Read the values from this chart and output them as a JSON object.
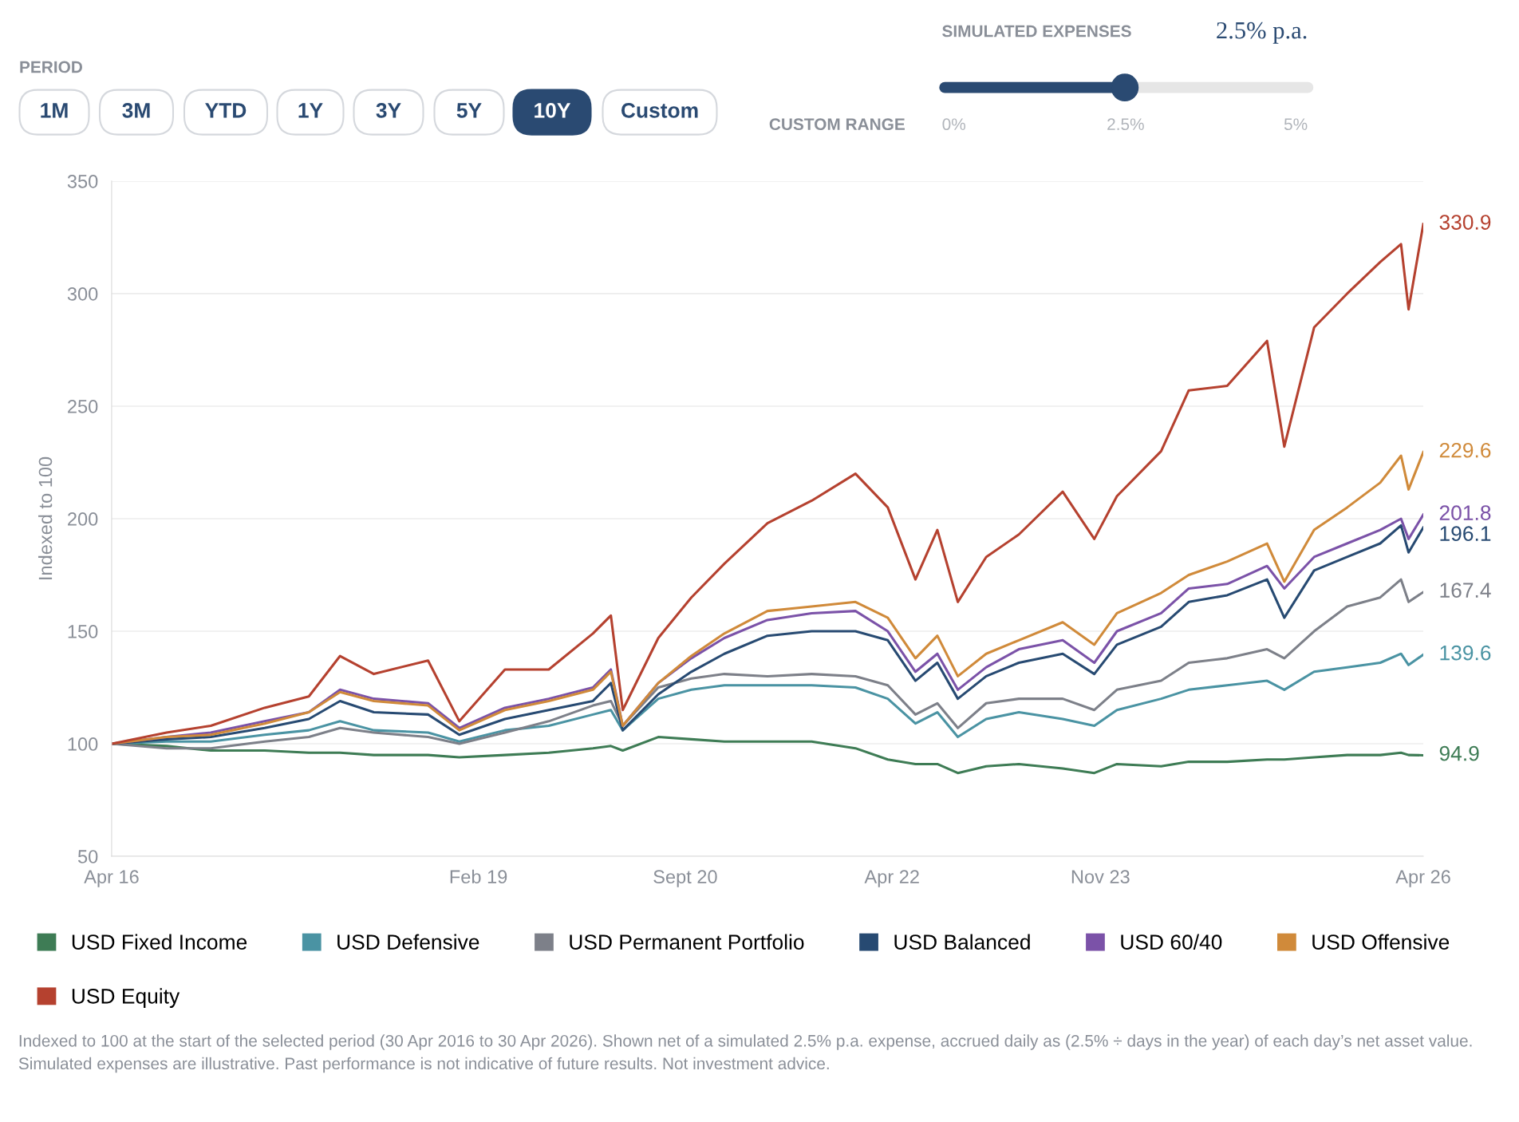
{
  "chart_data": {
    "type": "line",
    "ylabel": "Indexed to 100",
    "x": [
      "2016-04-30",
      "2016-09-30",
      "2017-01-31",
      "2017-06-30",
      "2017-10-31",
      "2018-01-26",
      "2018-04-30",
      "2018-09-28",
      "2018-12-24",
      "2019-04-30",
      "2019-08-30",
      "2019-12-31",
      "2020-02-19",
      "2020-03-23",
      "2020-06-30",
      "2020-09-30",
      "2020-12-31",
      "2021-04-30",
      "2021-08-31",
      "2021-12-31",
      "2022-03-31",
      "2022-06-16",
      "2022-08-16",
      "2022-10-12",
      "2022-12-30",
      "2023-03-31",
      "2023-07-31",
      "2023-10-27",
      "2023-12-29",
      "2024-04-30",
      "2024-07-16",
      "2024-10-31",
      "2025-02-19",
      "2025-04-08",
      "2025-06-30",
      "2025-09-30",
      "2025-12-31",
      "2026-02-27",
      "2026-03-20",
      "2026-04-30"
    ],
    "series": [
      {
        "name": "USD Fixed Income",
        "color": "#3e7c55",
        "values": [
          100,
          99,
          97,
          97,
          96,
          96,
          95,
          95,
          94,
          95,
          96,
          98,
          99,
          97,
          103,
          102,
          101,
          101,
          101,
          98,
          93,
          91,
          91,
          87,
          90,
          91,
          89,
          87,
          91,
          90,
          92,
          92,
          93,
          93,
          94,
          95,
          95,
          96,
          95,
          94.9
        ],
        "value_labels": [
          null,
          null,
          null,
          null,
          null,
          null,
          null,
          null,
          null,
          null,
          null,
          null,
          null,
          null,
          null,
          null,
          null,
          null,
          null,
          null,
          null,
          null,
          null,
          null,
          null,
          null,
          null,
          null,
          null,
          null,
          null,
          null,
          null,
          null,
          null,
          null,
          null,
          null,
          null,
          "94.9"
        ]
      },
      {
        "name": "USD Defensive",
        "color": "#4a93a3",
        "values": [
          100,
          101,
          101,
          104,
          106,
          110,
          106,
          105,
          101,
          106,
          108,
          113,
          115,
          106,
          120,
          124,
          126,
          126,
          126,
          125,
          120,
          109,
          114,
          103,
          111,
          114,
          111,
          108,
          115,
          120,
          124,
          126,
          128,
          124,
          132,
          134,
          136,
          140,
          135,
          139.6
        ],
        "value_labels": [
          null,
          null,
          null,
          null,
          null,
          null,
          null,
          null,
          null,
          null,
          null,
          null,
          null,
          null,
          null,
          null,
          null,
          null,
          null,
          null,
          null,
          null,
          null,
          null,
          null,
          null,
          null,
          null,
          null,
          null,
          null,
          null,
          null,
          null,
          null,
          null,
          null,
          null,
          null,
          "139.6"
        ]
      },
      {
        "name": "USD Permanent Portfolio",
        "color": "#7d8089",
        "values": [
          100,
          98,
          98,
          101,
          103,
          107,
          105,
          103,
          100,
          105,
          110,
          117,
          119,
          108,
          125,
          129,
          131,
          130,
          131,
          130,
          126,
          113,
          118,
          107,
          118,
          120,
          120,
          115,
          124,
          128,
          136,
          138,
          142,
          138,
          150,
          161,
          165,
          173,
          163,
          167.4
        ],
        "value_labels": [
          null,
          null,
          null,
          null,
          null,
          null,
          null,
          null,
          null,
          null,
          null,
          null,
          null,
          null,
          null,
          null,
          null,
          null,
          null,
          null,
          null,
          null,
          null,
          null,
          null,
          null,
          null,
          null,
          null,
          null,
          null,
          null,
          null,
          null,
          null,
          null,
          null,
          null,
          null,
          "167.4"
        ]
      },
      {
        "name": "USD Balanced",
        "color": "#274a72",
        "values": [
          100,
          102,
          103,
          107,
          111,
          119,
          114,
          113,
          104,
          111,
          115,
          119,
          127,
          106,
          122,
          132,
          140,
          148,
          150,
          150,
          146,
          128,
          136,
          120,
          130,
          136,
          140,
          131,
          144,
          152,
          163,
          166,
          173,
          156,
          177,
          183,
          189,
          197,
          185,
          196.1
        ],
        "value_labels": [
          null,
          null,
          null,
          null,
          null,
          null,
          null,
          null,
          null,
          null,
          null,
          null,
          null,
          null,
          null,
          null,
          null,
          null,
          null,
          null,
          null,
          null,
          null,
          null,
          null,
          null,
          null,
          null,
          null,
          null,
          null,
          null,
          null,
          null,
          null,
          null,
          null,
          null,
          null,
          "196.1"
        ]
      },
      {
        "name": "USD 60/40",
        "color": "#7b52a8",
        "values": [
          100,
          103,
          105,
          110,
          114,
          124,
          120,
          118,
          107,
          116,
          120,
          125,
          133,
          108,
          127,
          138,
          147,
          155,
          158,
          159,
          150,
          132,
          140,
          124,
          134,
          142,
          146,
          136,
          150,
          158,
          169,
          171,
          179,
          169,
          183,
          189,
          195,
          200,
          191,
          201.8
        ],
        "value_labels": [
          null,
          null,
          null,
          null,
          null,
          null,
          null,
          null,
          null,
          null,
          null,
          null,
          null,
          null,
          null,
          null,
          null,
          null,
          null,
          null,
          null,
          null,
          null,
          null,
          null,
          null,
          null,
          null,
          null,
          null,
          null,
          null,
          null,
          null,
          null,
          null,
          null,
          null,
          null,
          "201.8"
        ]
      },
      {
        "name": "USD Offensive",
        "color": "#d08a3a",
        "values": [
          100,
          103,
          104,
          109,
          114,
          123,
          119,
          117,
          106,
          115,
          119,
          124,
          132,
          108,
          127,
          139,
          149,
          159,
          161,
          163,
          156,
          138,
          148,
          130,
          140,
          146,
          154,
          144,
          158,
          167,
          175,
          181,
          189,
          172,
          195,
          205,
          216,
          228,
          213,
          229.6
        ],
        "value_labels": [
          null,
          null,
          null,
          null,
          null,
          null,
          null,
          null,
          null,
          null,
          null,
          null,
          null,
          null,
          null,
          null,
          null,
          null,
          null,
          null,
          null,
          null,
          null,
          null,
          null,
          null,
          null,
          null,
          null,
          null,
          null,
          null,
          null,
          null,
          null,
          null,
          null,
          null,
          null,
          "229.6"
        ]
      },
      {
        "name": "USD Equity",
        "color": "#b5412f",
        "values": [
          100,
          105,
          108,
          116,
          121,
          139,
          131,
          137,
          110,
          133,
          133,
          149,
          157,
          115,
          147,
          165,
          180,
          198,
          208,
          220,
          205,
          173,
          195,
          163,
          183,
          193,
          212,
          191,
          210,
          230,
          257,
          259,
          279,
          232,
          285,
          300,
          314,
          322,
          293,
          330.9
        ],
        "value_labels": [
          null,
          null,
          null,
          null,
          null,
          null,
          null,
          null,
          null,
          null,
          null,
          null,
          null,
          null,
          null,
          null,
          null,
          null,
          null,
          null,
          null,
          null,
          null,
          null,
          null,
          null,
          null,
          null,
          null,
          null,
          null,
          null,
          null,
          null,
          null,
          null,
          null,
          null,
          null,
          "330.9"
        ]
      }
    ],
    "xlim": [
      "2016-04-30",
      "2026-04-30"
    ],
    "xticks": [
      {
        "value": "2016-04-30",
        "label": "Apr 16"
      },
      {
        "value": "2019-02-15",
        "label": "Feb 19"
      },
      {
        "value": "2020-09-13",
        "label": "Sept 20"
      },
      {
        "value": "2022-04-12",
        "label": "Apr 22"
      },
      {
        "value": "2023-11-13",
        "label": "Nov 23"
      },
      {
        "value": "2026-04-30",
        "label": "Apr 26"
      }
    ],
    "ylim": [
      50,
      350
    ],
    "yticks": [
      50,
      100,
      150,
      200,
      250,
      300,
      350
    ],
    "grid": "y",
    "legend": "bottom",
    "line_style": "solid",
    "annotations": [
      "PERIOD",
      "1M",
      "3M",
      "YTD",
      "1Y",
      "3Y",
      "5Y",
      "10Y",
      "Custom",
      "SIMULATED EXPENSES",
      "2.5% p.a.",
      "CUSTOM RANGE",
      "0%",
      "2.5%",
      "5%",
      "Indexed to 100 at the start of the selected period (30 Apr 2016 to 30 Apr 2026). Shown net of a simulated 2.5% p.a. expense, accrued daily as (2.5% ÷ days in the year) of each day’s net asset value. Simulated expenses are illustrative. Past performance is not indicative of future results. Not investment advice."
    ]
  }
}
